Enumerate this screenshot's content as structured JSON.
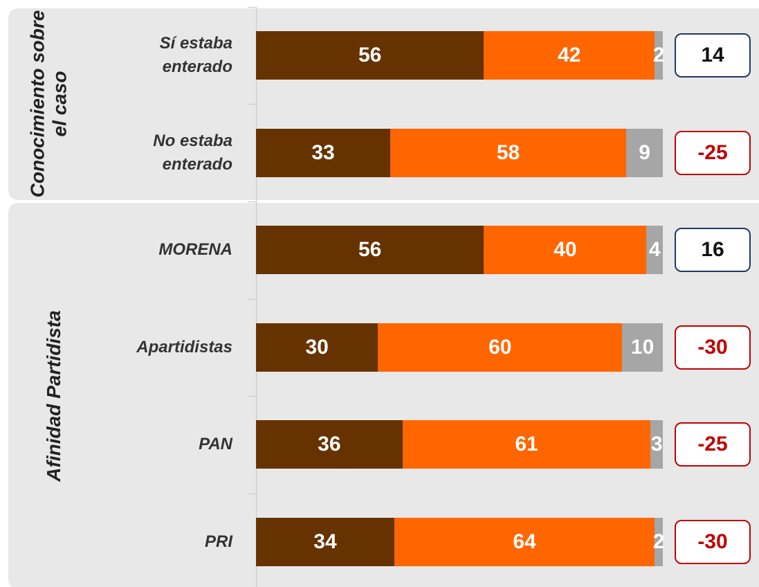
{
  "chart_data": {
    "type": "stacked_bar_h",
    "groups": [
      {
        "label": "Conocimiento sobre el caso",
        "categories": [
          "Sí estaba enterado",
          "No estaba enterado"
        ]
      },
      {
        "label": "Afinidad Partidista",
        "categories": [
          "MORENA",
          "Apartidistas",
          "PAN",
          "PRI"
        ]
      }
    ],
    "series": [
      {
        "color": "#663300",
        "values": [
          56,
          33,
          56,
          30,
          36,
          34
        ]
      },
      {
        "color": "#ff6600",
        "values": [
          42,
          58,
          40,
          60,
          61,
          64
        ]
      },
      {
        "color": "#a6a6a6",
        "values": [
          2,
          9,
          4,
          10,
          3,
          2
        ]
      }
    ],
    "xlim": [
      0,
      100
    ],
    "net": [
      14,
      -25,
      16,
      -30,
      -25,
      -30
    ],
    "net_colors": {
      "positive": "#1f3864",
      "negative": "#c00000"
    }
  }
}
